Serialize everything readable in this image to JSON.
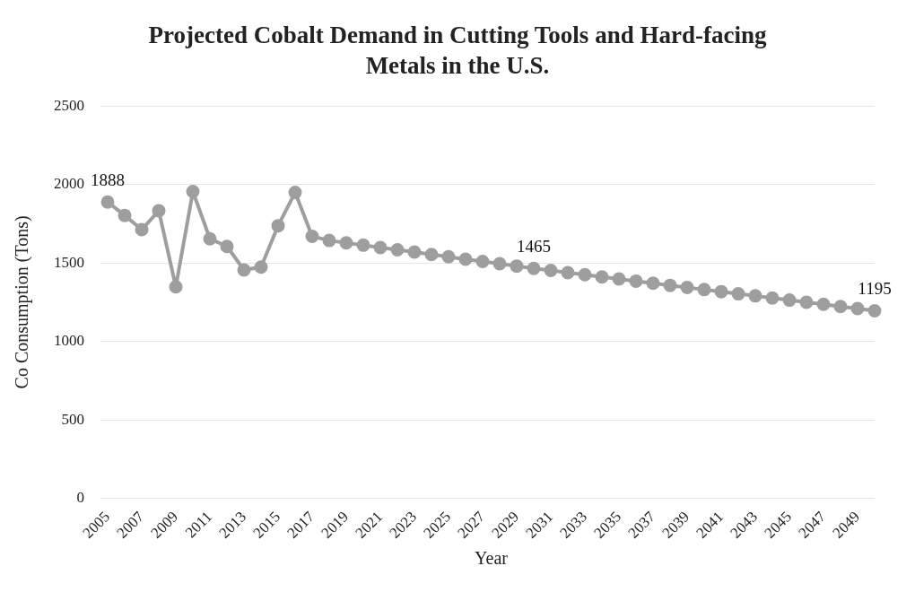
{
  "chart_data": {
    "type": "line",
    "title": "Projected Cobalt Demand in Cutting Tools and Hard-facing Metals in the U.S.",
    "xlabel": "Year",
    "ylabel": "Co Consumption (Tons)",
    "categories": [
      "2005",
      null,
      "2007",
      null,
      "2009",
      null,
      "2011",
      null,
      "2013",
      null,
      "2015",
      null,
      "2017",
      null,
      "2019",
      null,
      "2021",
      null,
      "2023",
      null,
      "2025",
      null,
      "2027",
      null,
      "2029",
      null,
      "2031",
      null,
      "2033",
      null,
      "2035",
      null,
      "2037",
      null,
      "2039",
      null,
      "2041",
      null,
      "2043",
      null,
      "2045",
      null,
      "2047",
      null,
      "2049",
      null
    ],
    "series": [
      {
        "color": "#9e9e9e",
        "values": [
          1888,
          1803,
          1712,
          1833,
          1348,
          1955,
          1654,
          1605,
          1455,
          1474,
          1737,
          1949,
          1669,
          1643,
          1628,
          1613,
          1598,
          1584,
          1569,
          1554,
          1539,
          1524,
          1509,
          1495,
          1480,
          1465,
          1452,
          1438,
          1425,
          1411,
          1398,
          1384,
          1371,
          1357,
          1344,
          1330,
          1317,
          1303,
          1290,
          1276,
          1263,
          1249,
          1236,
          1222,
          1209,
          1195
        ],
        "value_labels": [
          "1888",
          null,
          null,
          null,
          null,
          null,
          null,
          null,
          null,
          null,
          null,
          null,
          null,
          null,
          null,
          null,
          null,
          null,
          null,
          null,
          null,
          null,
          null,
          null,
          null,
          "1465",
          null,
          null,
          null,
          null,
          null,
          null,
          null,
          null,
          null,
          null,
          null,
          null,
          null,
          null,
          null,
          null,
          null,
          null,
          null,
          "1195"
        ]
      }
    ],
    "ylim": [
      0,
      2500
    ],
    "yticks": [
      0,
      500,
      1000,
      1500,
      2000,
      2500
    ],
    "grid": "y",
    "legend": false,
    "marker": "circle",
    "line_style": "solid"
  }
}
